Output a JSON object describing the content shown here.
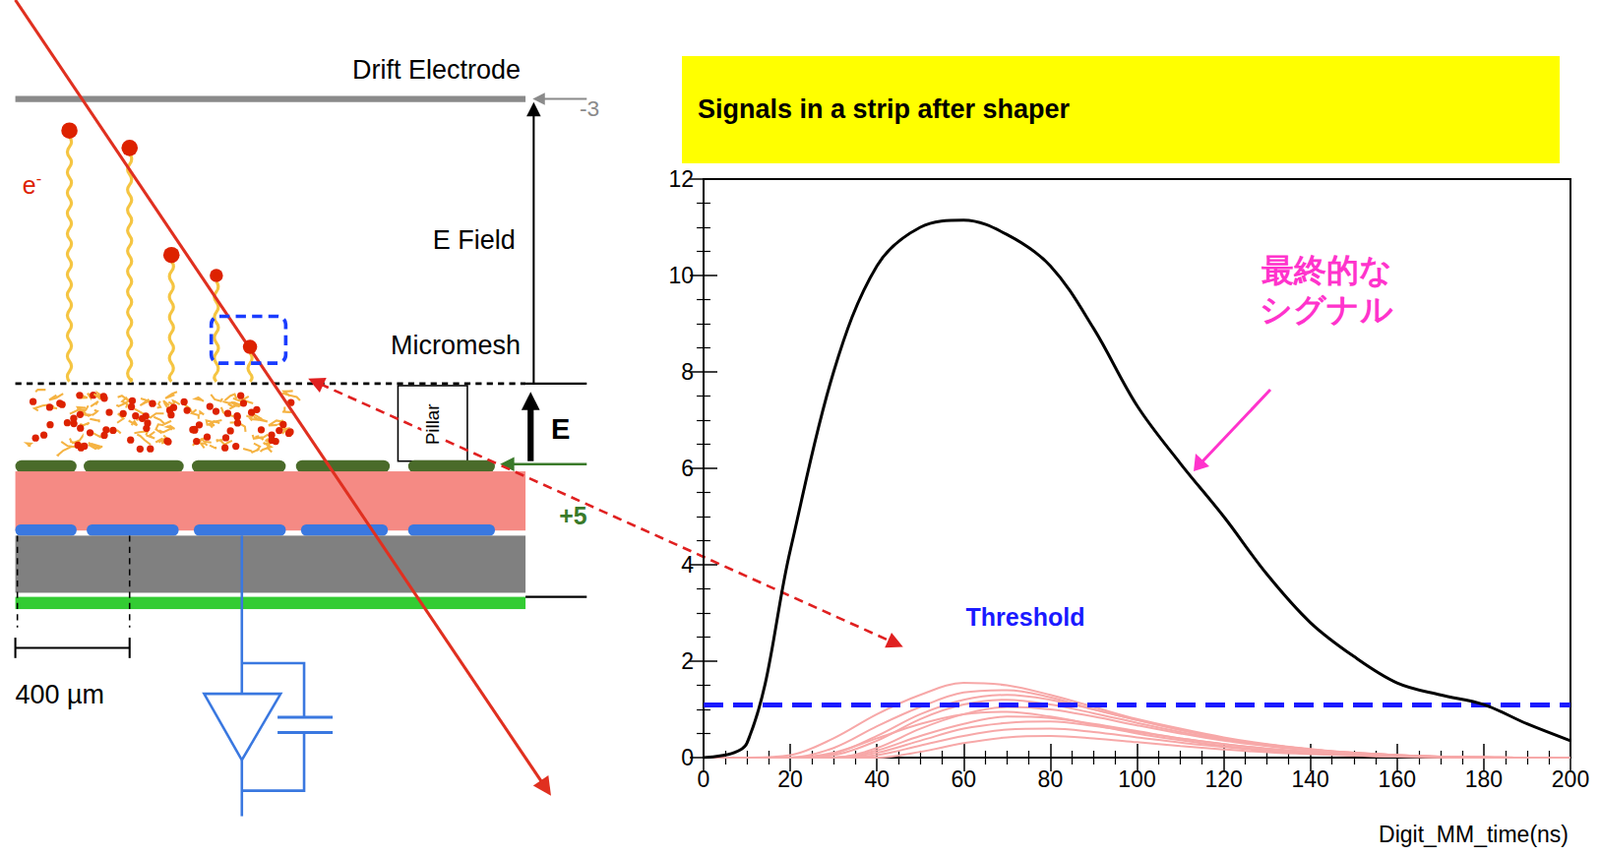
{
  "chart_data": {
    "type": "line",
    "title": "Signals in a strip after shaper",
    "x_label": "Digit_MM_time(ns)",
    "xlim": [
      0,
      200
    ],
    "xticks": [
      0,
      20,
      40,
      60,
      80,
      100,
      120,
      140,
      160,
      180,
      200
    ],
    "ylim": [
      0,
      12
    ],
    "yticks": [
      0,
      2,
      4,
      6,
      8,
      10,
      12
    ],
    "grid": false,
    "x": [
      0,
      10,
      20,
      30,
      40,
      50,
      60,
      70,
      80,
      90,
      100,
      110,
      120,
      130,
      140,
      150,
      160,
      170,
      180,
      190,
      200
    ],
    "series": [
      {
        "color": "#f7a8a8",
        "values": [
          0,
          0,
          0.05,
          0.4,
          0.9,
          1.3,
          1.55,
          1.5,
          1.3,
          1.05,
          0.8,
          0.6,
          0.42,
          0.28,
          0.18,
          0.1,
          0.05,
          0.02,
          0,
          0,
          0
        ]
      },
      {
        "color": "#f7a8a8",
        "values": [
          0,
          0,
          0,
          0.2,
          0.65,
          1.05,
          1.35,
          1.4,
          1.25,
          1.0,
          0.78,
          0.58,
          0.4,
          0.27,
          0.17,
          0.1,
          0.05,
          0.02,
          0,
          0,
          0
        ]
      },
      {
        "color": "#f7a8a8",
        "values": [
          0,
          0,
          0,
          0.08,
          0.45,
          0.9,
          1.2,
          1.3,
          1.2,
          1.0,
          0.78,
          0.57,
          0.4,
          0.27,
          0.17,
          0.1,
          0.05,
          0.02,
          0.01,
          0,
          0
        ]
      },
      {
        "color": "#f7a8a8",
        "values": [
          0,
          0,
          0,
          0.05,
          0.35,
          0.8,
          1.1,
          1.2,
          1.1,
          0.92,
          0.72,
          0.53,
          0.37,
          0.25,
          0.16,
          0.09,
          0.05,
          0.02,
          0.01,
          0,
          0
        ]
      },
      {
        "color": "#f7a8a8",
        "values": [
          0,
          0,
          0,
          0,
          0.2,
          0.6,
          0.9,
          1.05,
          1.0,
          0.85,
          0.67,
          0.5,
          0.35,
          0.24,
          0.15,
          0.09,
          0.05,
          0.02,
          0.01,
          0,
          0
        ]
      },
      {
        "color": "#f7a8a8",
        "values": [
          0,
          0,
          0,
          0.1,
          0.4,
          0.7,
          0.9,
          0.95,
          0.85,
          0.68,
          0.5,
          0.36,
          0.24,
          0.15,
          0.09,
          0.05,
          0.02,
          0.01,
          0,
          0,
          0
        ]
      },
      {
        "color": "#f7a8a8",
        "values": [
          0,
          0,
          0,
          0,
          0.15,
          0.45,
          0.7,
          0.85,
          0.82,
          0.7,
          0.55,
          0.4,
          0.28,
          0.18,
          0.11,
          0.06,
          0.03,
          0.01,
          0,
          0,
          0
        ]
      },
      {
        "color": "#f7a8a8",
        "values": [
          0,
          0,
          0,
          0,
          0.1,
          0.35,
          0.6,
          0.72,
          0.75,
          0.66,
          0.53,
          0.4,
          0.28,
          0.19,
          0.12,
          0.07,
          0.04,
          0.02,
          0.01,
          0,
          0
        ]
      },
      {
        "color": "#f7a8a8",
        "values": [
          0,
          0,
          0,
          0,
          0.05,
          0.25,
          0.45,
          0.58,
          0.6,
          0.53,
          0.42,
          0.31,
          0.22,
          0.14,
          0.09,
          0.05,
          0.03,
          0.01,
          0,
          0,
          0
        ]
      },
      {
        "color": "#f7a8a8",
        "values": [
          0,
          0,
          0,
          0,
          0,
          0.12,
          0.3,
          0.42,
          0.45,
          0.4,
          0.32,
          0.24,
          0.17,
          0.11,
          0.07,
          0.04,
          0.02,
          0.01,
          0,
          0,
          0
        ]
      },
      {
        "color": "#000000",
        "values": [
          0,
          0.3,
          4.3,
          8.0,
          10.2,
          11.0,
          11.15,
          10.85,
          10.2,
          8.9,
          7.3,
          6.1,
          5.0,
          3.8,
          2.8,
          2.1,
          1.55,
          1.3,
          1.1,
          0.7,
          0.35
        ]
      }
    ],
    "threshold": {
      "value": 1.1,
      "label": "Threshold",
      "color": "#1a1aff",
      "line_style": "dashed"
    },
    "annotations": [
      {
        "text": "最終的なシグナル",
        "color": "#ff33cc"
      }
    ]
  },
  "diagram": {
    "labels": {
      "drift_electrode": "Drift Electrode",
      "drift_voltage": "-3",
      "e_field": "E Field",
      "micromesh": "Micromesh",
      "pillar": "Pillar",
      "amplification_field": "E",
      "strip_voltage": "+5",
      "electron": "e-",
      "pitch": "400 µm"
    }
  }
}
